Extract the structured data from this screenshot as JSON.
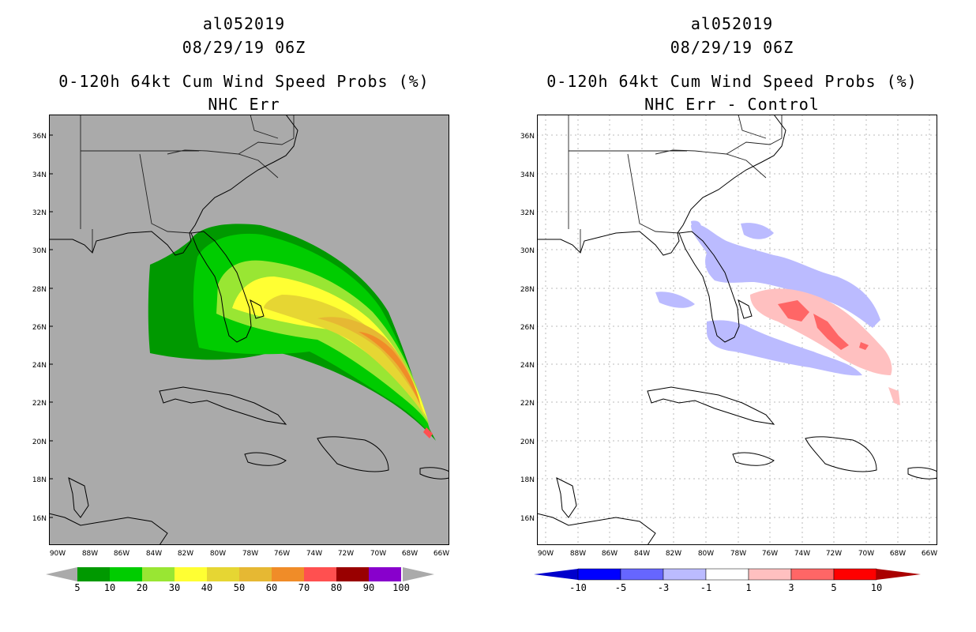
{
  "panels": [
    {
      "storm_id": "al052019",
      "datetime": "08/29/19 06Z",
      "product": "0-120h 64kt Cum Wind Speed Probs (%)",
      "subtitle": "NHC Err",
      "colorbar": {
        "labels": [
          "5",
          "10",
          "20",
          "30",
          "40",
          "50",
          "60",
          "70",
          "80",
          "90",
          "100"
        ],
        "colors": [
          "#009900",
          "#00cc00",
          "#99e633",
          "#ffff33",
          "#e6d633",
          "#e6b833",
          "#f08c28",
          "#ff5050",
          "#990000",
          "#8800cc"
        ]
      }
    },
    {
      "storm_id": "al052019",
      "datetime": "08/29/19 06Z",
      "product": "0-120h 64kt Cum Wind Speed Probs (%)",
      "subtitle": "NHC Err - Control",
      "colorbar": {
        "labels": [
          "-10",
          "-5",
          "-3",
          "-1",
          "1",
          "3",
          "5",
          "10"
        ],
        "colors": [
          "#0000cc",
          "#0000ff",
          "#6666ff",
          "#bbbbff",
          "#ffffff",
          "#ffc0c0",
          "#ff6666",
          "#ff0000",
          "#aa0000"
        ]
      }
    }
  ],
  "axes": {
    "lat_labels": [
      "36N",
      "34N",
      "32N",
      "30N",
      "28N",
      "26N",
      "24N",
      "22N",
      "20N",
      "18N",
      "16N"
    ],
    "lon_labels": [
      "90W",
      "88W",
      "86W",
      "84W",
      "82W",
      "80W",
      "78W",
      "76W",
      "74W",
      "72W",
      "70W",
      "68W",
      "66W"
    ]
  }
}
